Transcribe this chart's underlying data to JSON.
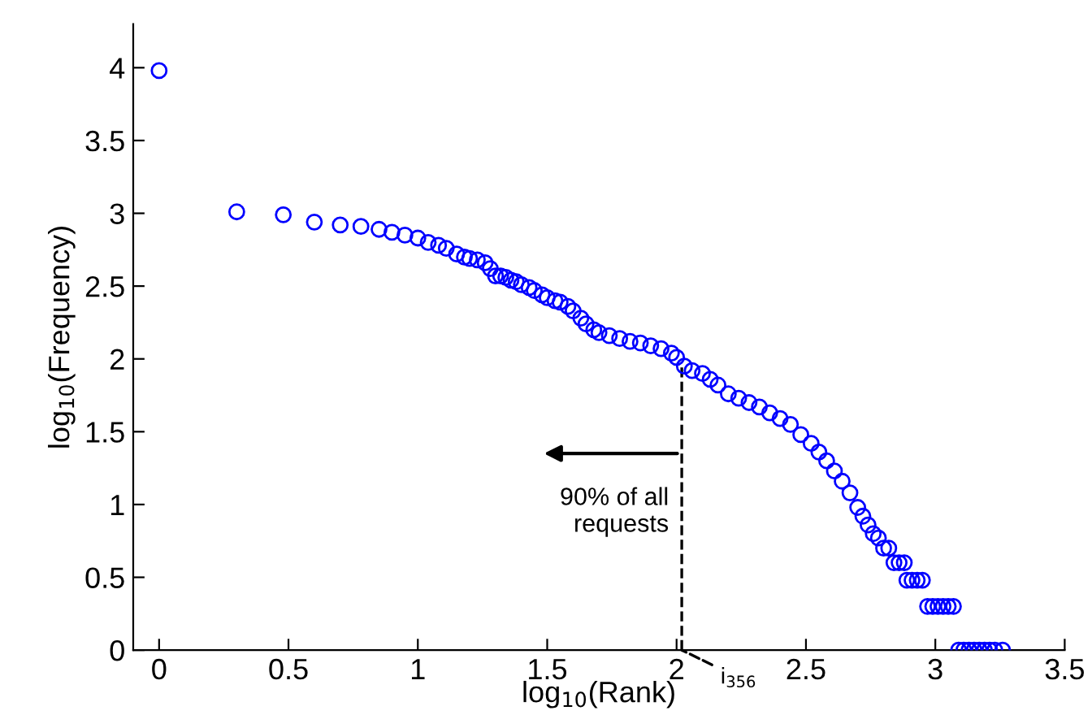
{
  "chart_data": {
    "type": "scatter",
    "xlabel": "log$_{10}$(Rank)",
    "ylabel": "log$_{10}$(Frequency)",
    "marker": "circle",
    "grid": false,
    "x": [
      0,
      0.3,
      0.48,
      0.6,
      0.7,
      0.78,
      0.85,
      0.9,
      0.95,
      1.0,
      1.04,
      1.08,
      1.11,
      1.15,
      1.18,
      1.2,
      1.23,
      1.26,
      1.28,
      1.3,
      1.32,
      1.34,
      1.36,
      1.38,
      1.4,
      1.43,
      1.45,
      1.48,
      1.5,
      1.53,
      1.55,
      1.58,
      1.6,
      1.63,
      1.65,
      1.68,
      1.7,
      1.74,
      1.78,
      1.82,
      1.86,
      1.9,
      1.94,
      1.98,
      2.0,
      2.03,
      2.06,
      2.1,
      2.13,
      2.16,
      2.2,
      2.24,
      2.28,
      2.32,
      2.36,
      2.4,
      2.44,
      2.48,
      2.52,
      2.55,
      2.58,
      2.61,
      2.64,
      2.67,
      2.7,
      2.72,
      2.74,
      2.76,
      2.78,
      2.8,
      2.82,
      2.84,
      2.86,
      2.88,
      2.89,
      2.91,
      2.93,
      2.95,
      2.97,
      2.99,
      3.01,
      3.03,
      3.05,
      3.07,
      3.09,
      3.11,
      3.13,
      3.15,
      3.17,
      3.19,
      3.21,
      3.23,
      3.26
    ],
    "series": [
      {
        "color": "#0000ff",
        "values": [
          3.98,
          3.01,
          2.99,
          2.94,
          2.92,
          2.91,
          2.89,
          2.87,
          2.85,
          2.83,
          2.8,
          2.78,
          2.76,
          2.72,
          2.7,
          2.69,
          2.68,
          2.66,
          2.62,
          2.57,
          2.57,
          2.56,
          2.54,
          2.53,
          2.51,
          2.49,
          2.47,
          2.44,
          2.42,
          2.4,
          2.39,
          2.36,
          2.33,
          2.28,
          2.24,
          2.2,
          2.18,
          2.16,
          2.14,
          2.12,
          2.11,
          2.09,
          2.07,
          2.04,
          2.01,
          1.95,
          1.92,
          1.9,
          1.86,
          1.82,
          1.76,
          1.73,
          1.7,
          1.67,
          1.63,
          1.59,
          1.55,
          1.48,
          1.42,
          1.36,
          1.3,
          1.23,
          1.16,
          1.08,
          0.98,
          0.92,
          0.86,
          0.8,
          0.77,
          0.7,
          0.7,
          0.6,
          0.6,
          0.6,
          0.48,
          0.48,
          0.48,
          0.48,
          0.3,
          0.3,
          0.3,
          0.3,
          0.3,
          0.3,
          0,
          0,
          0,
          0,
          0,
          0,
          0,
          0,
          0
        ]
      }
    ],
    "xlim": [
      -0.1,
      3.5
    ],
    "xticks": [
      0,
      0.5,
      1,
      1.5,
      2,
      2.5,
      3,
      3.5
    ],
    "ylim": [
      0,
      4.3
    ],
    "yticks": [
      0,
      0.5,
      1,
      1.5,
      2,
      2.5,
      3,
      3.5,
      4
    ],
    "ref_lines": [
      {
        "axis": "x",
        "value": 2.02,
        "label": "i$_{356}$",
        "line_style": "dashed",
        "color": "#000000"
      }
    ],
    "annotations": [
      "90% of all\nrequests"
    ]
  }
}
